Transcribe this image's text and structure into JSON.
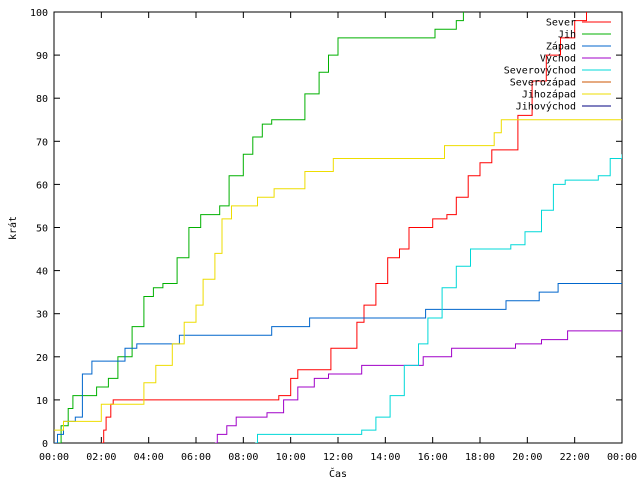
{
  "chart_data": {
    "type": "line",
    "xlabel": "Čas",
    "ylabel": "krát",
    "ylim": [
      0,
      100
    ],
    "yticks": [
      0,
      10,
      20,
      30,
      40,
      50,
      60,
      70,
      80,
      90,
      100
    ],
    "xlim": [
      0,
      24
    ],
    "xticks": [
      {
        "v": 0,
        "label": "00:00"
      },
      {
        "v": 2,
        "label": "02:00"
      },
      {
        "v": 4,
        "label": "04:00"
      },
      {
        "v": 6,
        "label": "06:00"
      },
      {
        "v": 8,
        "label": "08:00"
      },
      {
        "v": 10,
        "label": "10:00"
      },
      {
        "v": 12,
        "label": "12:00"
      },
      {
        "v": 14,
        "label": "14:00"
      },
      {
        "v": 16,
        "label": "16:00"
      },
      {
        "v": 18,
        "label": "18:00"
      },
      {
        "v": 20,
        "label": "20:00"
      },
      {
        "v": 22,
        "label": "22:00"
      },
      {
        "v": 24,
        "label": "00:00"
      }
    ],
    "grid": false,
    "legend_position": "top-right",
    "series": [
      {
        "name": "Sever",
        "color": "#ff0000",
        "points": [
          [
            2.0,
            0
          ],
          [
            2.1,
            3
          ],
          [
            2.2,
            6
          ],
          [
            2.4,
            9
          ],
          [
            2.5,
            10
          ],
          [
            8.0,
            10
          ],
          [
            9.5,
            11
          ],
          [
            10.0,
            15
          ],
          [
            10.3,
            17
          ],
          [
            11.3,
            17
          ],
          [
            11.7,
            22
          ],
          [
            12.6,
            22
          ],
          [
            12.8,
            28
          ],
          [
            13.1,
            32
          ],
          [
            13.6,
            37
          ],
          [
            14.1,
            43
          ],
          [
            14.6,
            45
          ],
          [
            15.0,
            50
          ],
          [
            15.8,
            50
          ],
          [
            16.0,
            52
          ],
          [
            16.6,
            53
          ],
          [
            17.0,
            57
          ],
          [
            17.5,
            62
          ],
          [
            18.0,
            65
          ],
          [
            18.5,
            68
          ],
          [
            19.2,
            68
          ],
          [
            19.6,
            76
          ],
          [
            20.2,
            84
          ],
          [
            20.8,
            90
          ],
          [
            21.4,
            94
          ],
          [
            22.0,
            98
          ],
          [
            22.5,
            101
          ],
          [
            24.0,
            101
          ]
        ]
      },
      {
        "name": "Jih",
        "color": "#00b000",
        "points": [
          [
            0.0,
            0
          ],
          [
            0.3,
            4
          ],
          [
            0.6,
            8
          ],
          [
            0.8,
            11
          ],
          [
            1.5,
            11
          ],
          [
            1.8,
            13
          ],
          [
            2.3,
            15
          ],
          [
            2.7,
            20
          ],
          [
            3.3,
            27
          ],
          [
            3.8,
            34
          ],
          [
            4.2,
            36
          ],
          [
            4.6,
            37
          ],
          [
            5.2,
            43
          ],
          [
            5.7,
            50
          ],
          [
            6.2,
            53
          ],
          [
            7.0,
            55
          ],
          [
            7.4,
            62
          ],
          [
            8.0,
            67
          ],
          [
            8.4,
            71
          ],
          [
            8.8,
            74
          ],
          [
            9.2,
            75
          ],
          [
            10.0,
            75
          ],
          [
            10.6,
            81
          ],
          [
            11.2,
            86
          ],
          [
            11.6,
            90
          ],
          [
            12.0,
            94
          ],
          [
            15.7,
            94
          ],
          [
            16.1,
            96
          ],
          [
            17.0,
            98
          ],
          [
            17.3,
            101
          ],
          [
            24.0,
            101
          ]
        ]
      },
      {
        "name": "Západ",
        "color": "#0066cc",
        "points": [
          [
            0.0,
            0
          ],
          [
            0.15,
            2
          ],
          [
            0.4,
            5
          ],
          [
            0.9,
            6
          ],
          [
            1.2,
            16
          ],
          [
            1.6,
            19
          ],
          [
            2.9,
            19
          ],
          [
            3.0,
            22
          ],
          [
            3.5,
            23
          ],
          [
            5.3,
            25
          ],
          [
            9.1,
            25
          ],
          [
            9.2,
            27
          ],
          [
            10.8,
            29
          ],
          [
            15.7,
            31
          ],
          [
            16.5,
            31
          ],
          [
            18.6,
            31
          ],
          [
            19.1,
            33
          ],
          [
            20.5,
            35
          ],
          [
            21.3,
            37
          ],
          [
            24.0,
            37
          ]
        ]
      },
      {
        "name": "Východ",
        "color": "#a000c8",
        "points": [
          [
            6.8,
            0
          ],
          [
            6.9,
            2
          ],
          [
            7.3,
            4
          ],
          [
            7.7,
            6
          ],
          [
            9.0,
            7
          ],
          [
            9.7,
            10
          ],
          [
            10.3,
            13
          ],
          [
            11.0,
            15
          ],
          [
            11.6,
            16
          ],
          [
            13.0,
            18
          ],
          [
            15.2,
            18
          ],
          [
            15.6,
            20
          ],
          [
            16.8,
            22
          ],
          [
            19.0,
            22
          ],
          [
            19.5,
            23
          ],
          [
            20.6,
            24
          ],
          [
            21.7,
            26
          ],
          [
            24.0,
            26
          ]
        ]
      },
      {
        "name": "Severovýchod",
        "color": "#00d8d8",
        "points": [
          [
            8.5,
            0
          ],
          [
            8.6,
            2
          ],
          [
            12.7,
            2
          ],
          [
            13.0,
            3
          ],
          [
            13.6,
            6
          ],
          [
            14.2,
            11
          ],
          [
            14.8,
            18
          ],
          [
            15.4,
            23
          ],
          [
            15.8,
            29
          ],
          [
            16.4,
            36
          ],
          [
            17.0,
            41
          ],
          [
            17.6,
            45
          ],
          [
            19.3,
            46
          ],
          [
            19.9,
            49
          ],
          [
            20.6,
            54
          ],
          [
            21.1,
            60
          ],
          [
            21.6,
            61
          ],
          [
            23.0,
            62
          ],
          [
            23.5,
            66
          ],
          [
            24.0,
            67
          ]
        ]
      },
      {
        "name": "Severozápad",
        "color": "#cc5500",
        "points": []
      },
      {
        "name": "Jihozápad",
        "color": "#eedd00",
        "points": [
          [
            0.0,
            3
          ],
          [
            0.4,
            5
          ],
          [
            1.8,
            5
          ],
          [
            2.0,
            9
          ],
          [
            3.5,
            9
          ],
          [
            3.8,
            14
          ],
          [
            4.3,
            18
          ],
          [
            5.0,
            23
          ],
          [
            5.5,
            28
          ],
          [
            6.0,
            32
          ],
          [
            6.3,
            38
          ],
          [
            6.8,
            44
          ],
          [
            7.1,
            52
          ],
          [
            7.5,
            55
          ],
          [
            8.6,
            57
          ],
          [
            9.3,
            59
          ],
          [
            10.3,
            59
          ],
          [
            10.6,
            63
          ],
          [
            11.2,
            63
          ],
          [
            11.8,
            66
          ],
          [
            16.0,
            66
          ],
          [
            16.5,
            69
          ],
          [
            18.0,
            69
          ],
          [
            18.6,
            72
          ],
          [
            18.9,
            75
          ],
          [
            24.0,
            75
          ]
        ]
      },
      {
        "name": "Jihovýchod",
        "color": "#000080",
        "points": []
      }
    ]
  }
}
